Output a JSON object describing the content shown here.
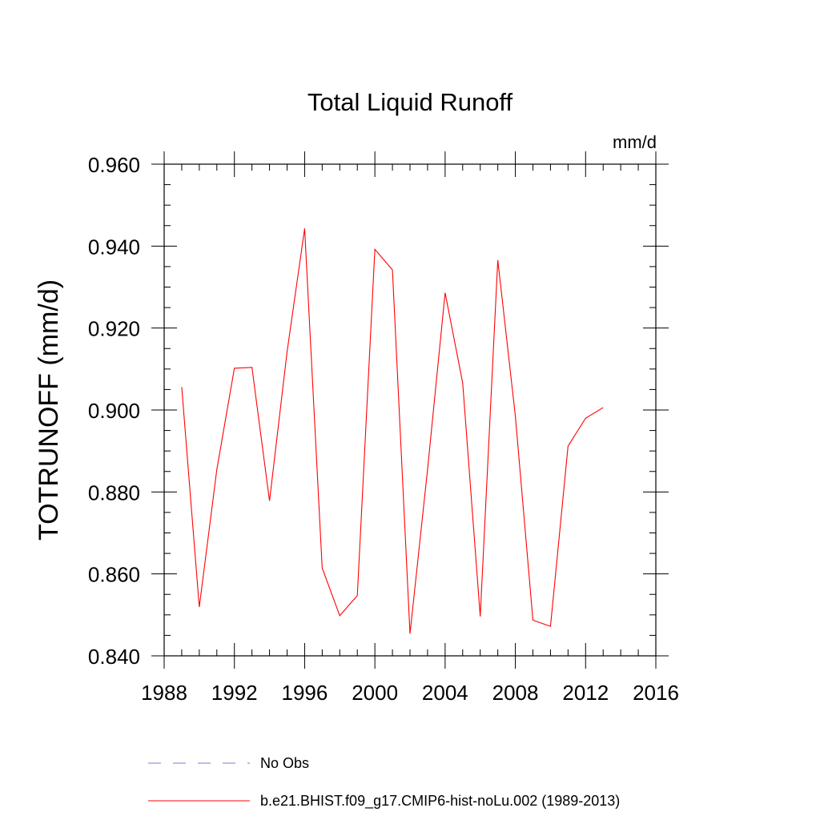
{
  "chart_data": {
    "type": "line",
    "title": "Total Liquid Runoff",
    "units": "mm/d",
    "ylabel": "TOTRUNOFF  (mm/d)",
    "xlabel": "",
    "xlim": [
      1988,
      2016
    ],
    "ylim": [
      0.84,
      0.96
    ],
    "x_ticks": [
      1988,
      1992,
      1996,
      2000,
      2004,
      2008,
      2012,
      2016
    ],
    "x_tick_labels": [
      "1988",
      "1992",
      "1996",
      "2000",
      "2004",
      "2008",
      "2012",
      "2016"
    ],
    "y_ticks": [
      0.84,
      0.86,
      0.88,
      0.9,
      0.92,
      0.94,
      0.96
    ],
    "y_tick_labels": [
      "0.840",
      "0.860",
      "0.880",
      "0.900",
      "0.920",
      "0.940",
      "0.960"
    ],
    "grid": false,
    "legend_position": "bottom",
    "series": [
      {
        "name": "No Obs",
        "color": "#7b7bd0",
        "dash": "dashed",
        "x": [],
        "values": []
      },
      {
        "name": "b.e21.BHIST.f09_g17.CMIP6-hist-noLu.002 (1989-2013)",
        "color": "#ff0000",
        "dash": "solid",
        "x": [
          1989,
          1990,
          1991,
          1992,
          1993,
          1994,
          1995,
          1996,
          1997,
          1998,
          1999,
          2000,
          2001,
          2002,
          2003,
          2004,
          2005,
          2006,
          2007,
          2008,
          2009,
          2010,
          2011,
          2012,
          2013
        ],
        "values": [
          0.9056,
          0.8519,
          0.8855,
          0.9102,
          0.9104,
          0.8778,
          0.9142,
          0.9443,
          0.8614,
          0.8498,
          0.8547,
          0.9392,
          0.9342,
          0.8454,
          0.8855,
          0.9286,
          0.9066,
          0.8496,
          0.9366,
          0.8985,
          0.8487,
          0.8472,
          0.8912,
          0.898,
          0.9006
        ]
      }
    ]
  }
}
